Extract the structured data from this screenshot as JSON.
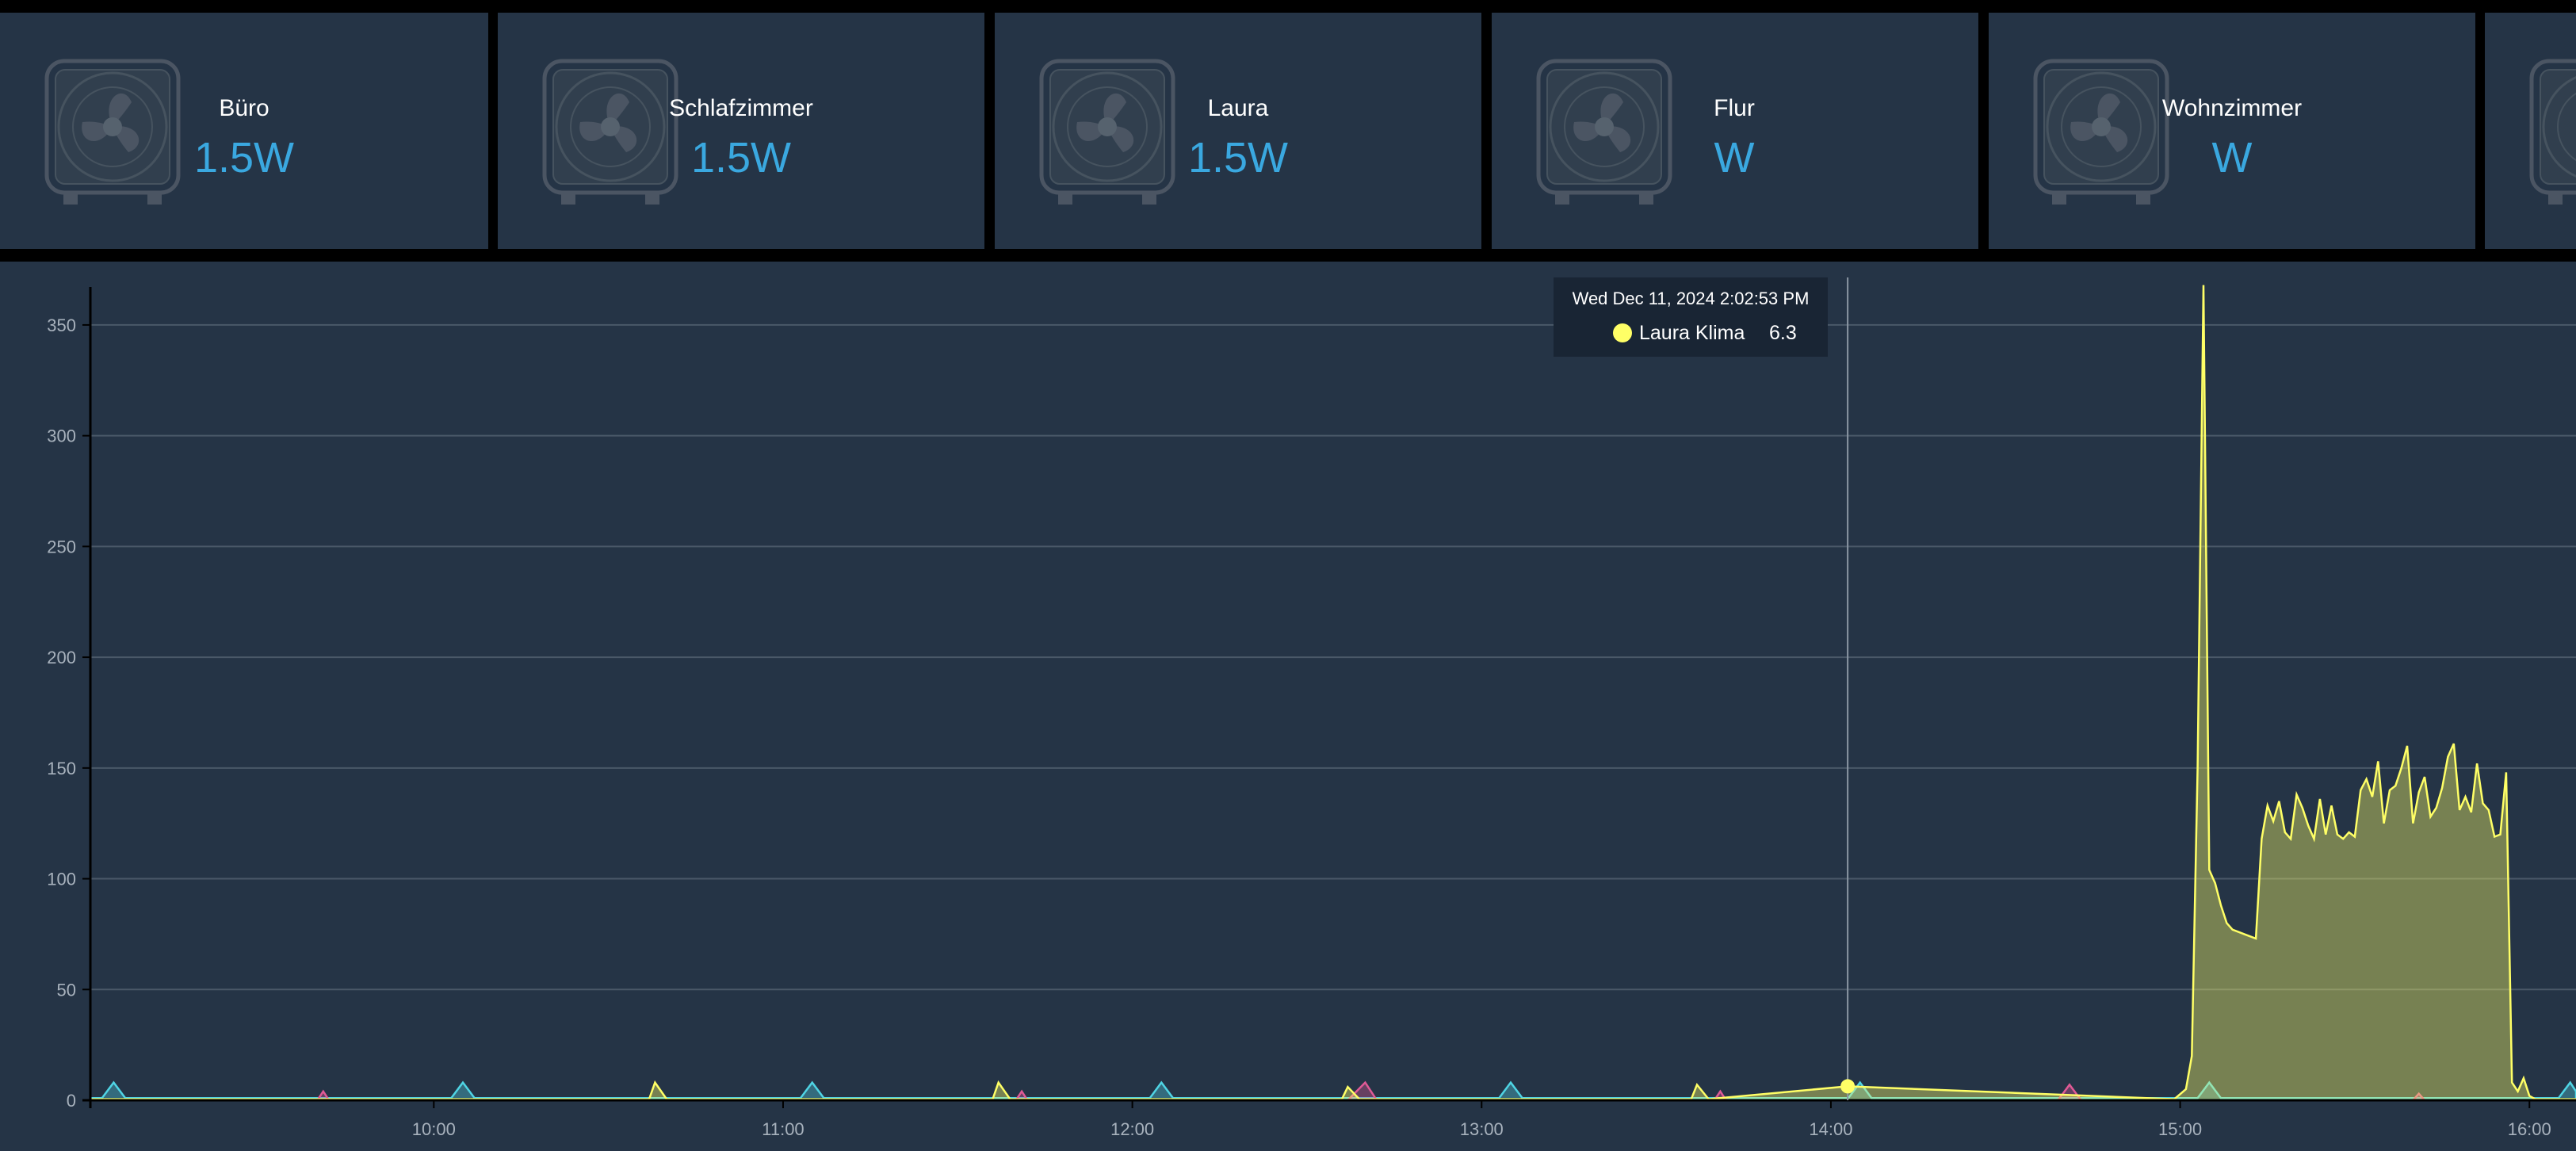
{
  "cards": [
    {
      "name": "Büro",
      "value": "1.5W",
      "icon": "fan-icon"
    },
    {
      "name": "Schlafzimmer",
      "value": "1.5W",
      "icon": "fan-icon"
    },
    {
      "name": "Laura",
      "value": "1.5W",
      "icon": "fan-icon"
    },
    {
      "name": "Flur",
      "value": "W",
      "icon": "fan-icon"
    },
    {
      "name": "Wohnzimmer",
      "value": "W",
      "icon": "fan-icon"
    }
  ],
  "colors": {
    "background": "#000000",
    "panel": "#253446",
    "value_text": "#3aa8e0",
    "grid": "#4a5868",
    "yellow_series": "#ffff66",
    "cyan_series": "#4fd4e4",
    "pink_series": "#e05a96"
  },
  "tooltip": {
    "time": "Wed Dec 11, 2024 2:02:53 PM",
    "series": "Laura Klima",
    "value": "6.3"
  },
  "chart_data": {
    "type": "area",
    "title": "",
    "xlabel": "",
    "ylabel": "",
    "grid": true,
    "x_ticks": [
      "10:00",
      "11:00",
      "12:00",
      "13:00",
      "14:00",
      "15:00",
      "16:00"
    ],
    "y_ticks": [
      0,
      50,
      100,
      150,
      200,
      250,
      300,
      350
    ],
    "ylim": [
      0,
      365
    ],
    "xlim": [
      "09:01",
      "16:08"
    ],
    "cursor_time": "14:02:53",
    "series": [
      {
        "name": "Laura Klima",
        "color": "#ffff66",
        "baseline": 0.5,
        "points": [
          [
            "10:37",
            0.5
          ],
          [
            "10:38",
            8
          ],
          [
            "10:40",
            0.5
          ],
          [
            "11:36",
            0.5
          ],
          [
            "11:37",
            8
          ],
          [
            "11:39",
            0.5
          ],
          [
            "12:36",
            0.5
          ],
          [
            "12:37",
            6
          ],
          [
            "12:39",
            0.5
          ],
          [
            "13:36",
            0.5
          ],
          [
            "13:37",
            7
          ],
          [
            "13:39",
            0.5
          ],
          [
            "14:02:53",
            6.3
          ],
          [
            "14:59",
            0.5
          ],
          [
            "15:01",
            5
          ],
          [
            "15:02",
            20
          ],
          [
            "15:03",
            150
          ],
          [
            "15:04",
            368
          ],
          [
            "15:05",
            104
          ],
          [
            "15:06",
            98
          ],
          [
            "15:07",
            88
          ],
          [
            "15:08",
            80
          ],
          [
            "15:09",
            77
          ],
          [
            "15:10",
            76
          ],
          [
            "15:11",
            75
          ],
          [
            "15:12",
            74
          ],
          [
            "15:13",
            73
          ],
          [
            "15:14",
            118
          ],
          [
            "15:15",
            133
          ],
          [
            "15:16",
            126
          ],
          [
            "15:17",
            135
          ],
          [
            "15:18",
            121
          ],
          [
            "15:19",
            118
          ],
          [
            "15:20",
            138
          ],
          [
            "15:21",
            132
          ],
          [
            "15:22",
            124
          ],
          [
            "15:23",
            118
          ],
          [
            "15:24",
            136
          ],
          [
            "15:25",
            120
          ],
          [
            "15:26",
            133
          ],
          [
            "15:27",
            120
          ],
          [
            "15:28",
            118
          ],
          [
            "15:29",
            121
          ],
          [
            "15:30",
            119
          ],
          [
            "15:31",
            140
          ],
          [
            "15:32",
            145
          ],
          [
            "15:33",
            137
          ],
          [
            "15:34",
            153
          ],
          [
            "15:35",
            125
          ],
          [
            "15:36",
            140
          ],
          [
            "15:37",
            142
          ],
          [
            "15:38",
            150
          ],
          [
            "15:39",
            160
          ],
          [
            "15:40",
            125
          ],
          [
            "15:41",
            139
          ],
          [
            "15:42",
            146
          ],
          [
            "15:43",
            128
          ],
          [
            "15:44",
            132
          ],
          [
            "15:45",
            141
          ],
          [
            "15:46",
            155
          ],
          [
            "15:47",
            161
          ],
          [
            "15:48",
            131
          ],
          [
            "15:49",
            137
          ],
          [
            "15:50",
            130
          ],
          [
            "15:51",
            152
          ],
          [
            "15:52",
            134
          ],
          [
            "15:53",
            131
          ],
          [
            "15:54",
            119
          ],
          [
            "15:55",
            120
          ],
          [
            "15:56",
            148
          ],
          [
            "15:57",
            8
          ],
          [
            "15:58",
            4
          ],
          [
            "15:59",
            10
          ],
          [
            "16:00",
            2
          ],
          [
            "16:01",
            0.5
          ]
        ]
      },
      {
        "name": "",
        "color": "#4fd4e4",
        "baseline": 1,
        "points": [
          [
            "09:03",
            1
          ],
          [
            "09:05",
            8
          ],
          [
            "09:07",
            1
          ],
          [
            "10:03",
            1
          ],
          [
            "10:05",
            8
          ],
          [
            "10:07",
            1
          ],
          [
            "11:03",
            1
          ],
          [
            "11:05",
            8
          ],
          [
            "11:07",
            1
          ],
          [
            "12:03",
            1
          ],
          [
            "12:05",
            8
          ],
          [
            "12:07",
            1
          ],
          [
            "13:03",
            1
          ],
          [
            "13:05",
            8
          ],
          [
            "13:07",
            1
          ],
          [
            "14:03",
            1
          ],
          [
            "14:05",
            8
          ],
          [
            "14:07",
            1
          ],
          [
            "15:03",
            1
          ],
          [
            "15:05",
            8
          ],
          [
            "15:07",
            1
          ],
          [
            "16:05",
            1
          ],
          [
            "16:07",
            8
          ],
          [
            "16:08",
            4
          ]
        ]
      },
      {
        "name": "",
        "color": "#e05a96",
        "baseline": 0,
        "points": [
          [
            "09:40",
            0
          ],
          [
            "09:41",
            4
          ],
          [
            "09:42",
            0
          ],
          [
            "11:40",
            0
          ],
          [
            "11:41",
            4
          ],
          [
            "11:42",
            0
          ],
          [
            "12:37",
            0
          ],
          [
            "12:40",
            8
          ],
          [
            "12:42",
            0
          ],
          [
            "13:40",
            0
          ],
          [
            "13:41",
            4
          ],
          [
            "13:42",
            0
          ],
          [
            "14:39",
            0
          ],
          [
            "14:41",
            7
          ],
          [
            "14:43",
            0
          ],
          [
            "15:40",
            0
          ],
          [
            "15:41",
            3
          ],
          [
            "15:42",
            0
          ]
        ]
      }
    ]
  }
}
